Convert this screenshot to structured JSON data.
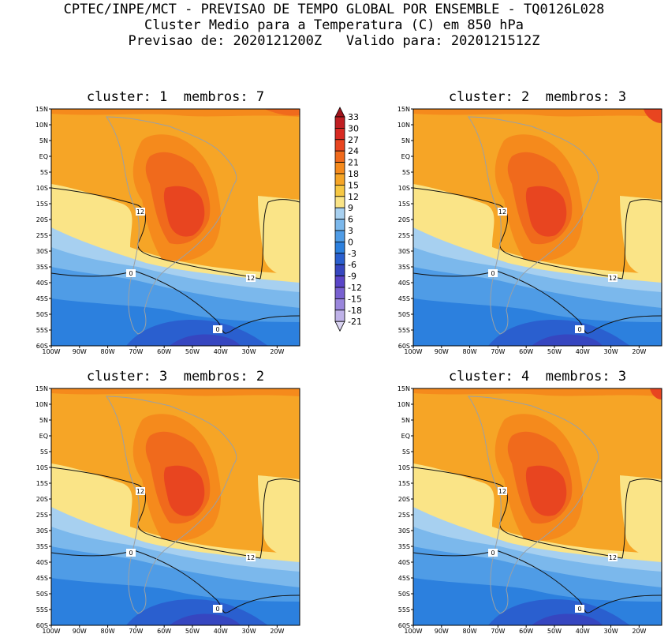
{
  "header": {
    "line1": "CPTEC/INPE/MCT - PREVISAO DE TEMPO GLOBAL POR ENSEMBLE - TQ0126L028",
    "line2": "Cluster Medio para a Temperatura (C) em 850 hPa",
    "line3": "Previsao de: 2020121200Z   Valido para: 2020121512Z"
  },
  "panels": [
    {
      "title": "cluster: 1  membros: 7"
    },
    {
      "title": "cluster: 2  membros: 3"
    },
    {
      "title": "cluster: 3  membros: 2"
    },
    {
      "title": "cluster: 4  membros: 3"
    }
  ],
  "lat_labels": [
    "15N",
    "10N",
    "5N",
    "EQ",
    "5S",
    "10S",
    "15S",
    "20S",
    "25S",
    "30S",
    "35S",
    "40S",
    "45S",
    "50S",
    "55S",
    "60S"
  ],
  "lon_labels": [
    "100W",
    "90W",
    "80W",
    "70W",
    "60W",
    "50W",
    "40W",
    "30W",
    "20W"
  ],
  "contour_labels": [
    "12",
    "12",
    "0",
    "0"
  ],
  "colorbar": {
    "levels": [
      "33",
      "30",
      "27",
      "24",
      "21",
      "18",
      "15",
      "12",
      "9",
      "6",
      "3",
      "0",
      "-3",
      "-6",
      "-9",
      "-12",
      "-15",
      "-18",
      "-21"
    ],
    "colors": [
      "#a0141c",
      "#c01e22",
      "#d82a22",
      "#e84520",
      "#f06a1c",
      "#f58a1c",
      "#f6a526",
      "#f7c843",
      "#fae487",
      "#a7d0f0",
      "#7bb8ec",
      "#4f9ce6",
      "#2c80de",
      "#2a5fcf",
      "#3646c0",
      "#5a45c8",
      "#7860d0",
      "#9a86dc",
      "#bfb2e8",
      "#dcd6f3"
    ]
  }
}
